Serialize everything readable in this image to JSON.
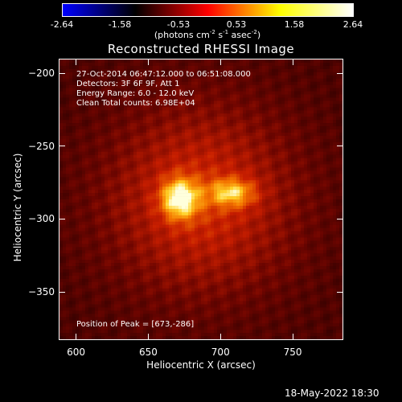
{
  "colorbar": {
    "ticks": [
      "-2.64",
      "-1.58",
      "-0.53",
      "0.53",
      "1.58",
      "2.64"
    ],
    "units_main": "(photons cm",
    "units_exp1": "-2",
    "units_mid1": " s",
    "units_exp2": "-1",
    "units_mid2": " asec",
    "units_exp3": "-2",
    "units_end": ")",
    "colors": [
      "#0000ff",
      "#000000",
      "#ff0000",
      "#ffff00",
      "#ffffff"
    ]
  },
  "title": "Reconstructed RHESSI Image",
  "info": {
    "line1": "27-Oct-2014 06:47:12.000 to 06:51:08.000",
    "line2": "Detectors: 3F 6F 9F, Att 1",
    "line3": "Energy Range: 6.0 - 12.0 keV",
    "line4": "Clean    Total counts: 6.98E+04",
    "peak": "Position of Peak = [673,-286]"
  },
  "footer": "18-May-2022 18:30",
  "chart_data": {
    "type": "heatmap",
    "title": "Reconstructed RHESSI Image",
    "xlabel": "Heliocentric X (arcsec)",
    "ylabel": "Heliocentric Y (arcsec)",
    "xlim": [
      588,
      785
    ],
    "ylim": [
      -383,
      -190
    ],
    "xticks": [
      600,
      650,
      700,
      750
    ],
    "xtick_labels": [
      "600",
      "650",
      "700",
      "750"
    ],
    "yticks": [
      -200,
      -250,
      -300,
      -350
    ],
    "ytick_labels": [
      "−200",
      "−250",
      "−300",
      "−350"
    ],
    "colorbar_range": [
      -2.64,
      2.64
    ],
    "peak_position": [
      673,
      -286
    ],
    "sources": [
      {
        "name": "",
        "x": 672,
        "y": -286,
        "peak": 1.0
      },
      {
        "name": "",
        "x": 708,
        "y": -282,
        "peak": 0.72
      }
    ]
  }
}
